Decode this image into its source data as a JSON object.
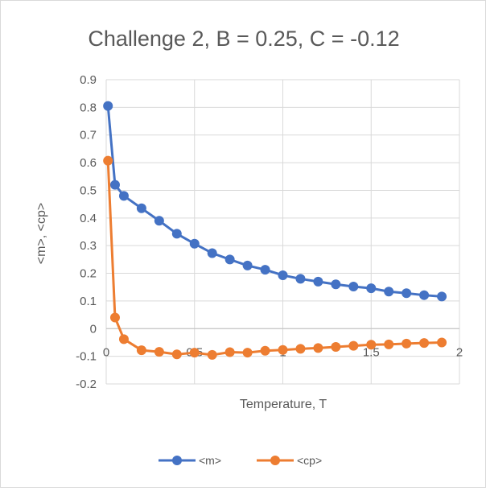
{
  "chart_data": {
    "type": "scatter",
    "title": "Challenge 2, B = 0.25, C = -0.12",
    "xlabel": "Temperature, T",
    "ylabel": "<m>, <cp>",
    "xlim": [
      0,
      2
    ],
    "ylim": [
      -0.2,
      0.9
    ],
    "xticks": [
      0,
      0.5,
      1,
      1.5,
      2
    ],
    "xtick_labels": [
      "0",
      "0.5",
      "1",
      "1.5",
      "2"
    ],
    "yticks": [
      -0.2,
      -0.1,
      0,
      0.1,
      0.2,
      0.3,
      0.4,
      0.5,
      0.6,
      0.7,
      0.8,
      0.9
    ],
    "ytick_labels": [
      "-0.2",
      "-0.1",
      "0",
      "0.1",
      "0.2",
      "0.3",
      "0.4",
      "0.5",
      "0.6",
      "0.7",
      "0.8",
      "0.9"
    ],
    "grid": true,
    "legend_position": "bottom",
    "series": [
      {
        "name": "<m>",
        "color": "#4472c4",
        "x": [
          0.01,
          0.05,
          0.1,
          0.2,
          0.3,
          0.4,
          0.5,
          0.6,
          0.7,
          0.8,
          0.9,
          1.0,
          1.1,
          1.2,
          1.3,
          1.4,
          1.5,
          1.6,
          1.7,
          1.8,
          1.9
        ],
        "y": [
          0.805,
          0.52,
          0.48,
          0.435,
          0.39,
          0.343,
          0.307,
          0.273,
          0.25,
          0.228,
          0.213,
          0.193,
          0.18,
          0.17,
          0.16,
          0.152,
          0.146,
          0.134,
          0.128,
          0.121,
          0.116
        ]
      },
      {
        "name": "<cp>",
        "color": "#ed7d31",
        "x": [
          0.01,
          0.05,
          0.1,
          0.2,
          0.3,
          0.4,
          0.5,
          0.6,
          0.7,
          0.8,
          0.9,
          1.0,
          1.1,
          1.2,
          1.3,
          1.4,
          1.5,
          1.6,
          1.7,
          1.8,
          1.9
        ],
        "y": [
          0.607,
          0.04,
          -0.038,
          -0.078,
          -0.084,
          -0.093,
          -0.087,
          -0.095,
          -0.085,
          -0.087,
          -0.08,
          -0.077,
          -0.073,
          -0.07,
          -0.066,
          -0.062,
          -0.058,
          -0.057,
          -0.054,
          -0.052,
          -0.05
        ]
      }
    ]
  }
}
